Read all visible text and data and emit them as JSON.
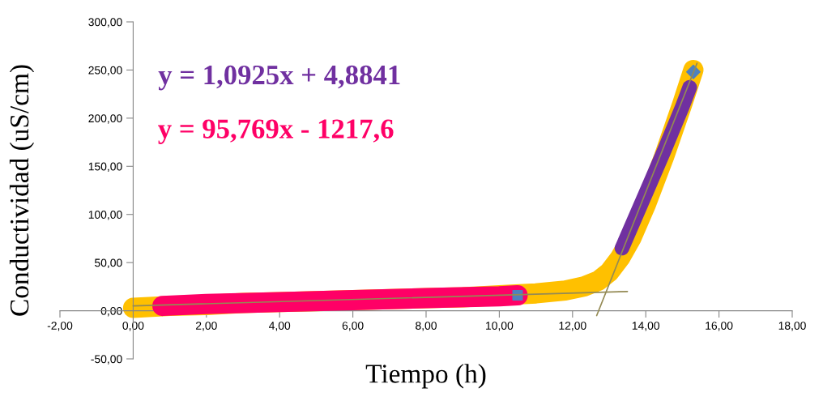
{
  "chart_data": {
    "type": "line",
    "xlabel": "Tiempo (h)",
    "ylabel": "Conductividad (uS/cm)",
    "annotations": [
      "y = 1,0925x + 4,8841",
      "y = 95,769x - 1217,6"
    ],
    "series": [
      {
        "color": "#ffc000",
        "x": [
          0,
          1,
          2,
          3,
          4,
          5,
          6,
          7,
          8,
          9,
          10,
          11,
          11.8,
          12.3,
          12.7,
          13.0,
          13.3,
          13.6,
          14.0,
          14.5,
          15.0,
          15.3
        ],
        "values": [
          3,
          5,
          6,
          8,
          9,
          10,
          11,
          12,
          13,
          14,
          16,
          18,
          21,
          25,
          31,
          40,
          55,
          75,
          110,
          160,
          215,
          250
        ]
      },
      {
        "color": "#ff0066",
        "x": [
          0.8,
          2,
          4,
          6,
          8,
          10,
          10.5
        ],
        "values": [
          5,
          7,
          9,
          11,
          13,
          15,
          16
        ]
      },
      {
        "color": "#7030a0",
        "x": [
          13.35,
          14,
          14.5,
          15,
          15.2
        ],
        "values": [
          65,
          122,
          166,
          212,
          232
        ]
      },
      {
        "color": "#948a54",
        "x": [
          0,
          13.5
        ],
        "values": [
          5,
          20
        ]
      },
      {
        "color": "#948a54",
        "x": [
          12.66,
          15.4
        ],
        "values": [
          -5,
          257
        ]
      },
      {
        "type": "scatter",
        "color": "#4f81bd",
        "marker": "square",
        "x": [
          10.5
        ],
        "values": [
          16
        ]
      },
      {
        "type": "scatter",
        "color": "#4f81bd",
        "marker": "diamond",
        "x": [
          15.3
        ],
        "values": [
          248
        ]
      }
    ],
    "marker": "none",
    "grid": false,
    "legend": false,
    "xlim": [
      -2,
      18
    ],
    "xticks": [
      {
        "value": -2,
        "label": "-2,00"
      },
      {
        "value": 0,
        "label": "0,00"
      },
      {
        "value": 2,
        "label": "2,00"
      },
      {
        "value": 4,
        "label": "4,00"
      },
      {
        "value": 6,
        "label": "6,00"
      },
      {
        "value": 8,
        "label": "8,00"
      },
      {
        "value": 10,
        "label": "10,00"
      },
      {
        "value": 12,
        "label": "12,00"
      },
      {
        "value": 14,
        "label": "14,00"
      },
      {
        "value": 16,
        "label": "16,00"
      },
      {
        "value": 18,
        "label": "18,00"
      }
    ],
    "ylim": [
      -50,
      300
    ],
    "yticks": [
      {
        "value": -50,
        "label": "-50,00"
      },
      {
        "value": 0,
        "label": "0,00"
      },
      {
        "value": 50,
        "label": "50,00"
      },
      {
        "value": 100,
        "label": "100,00"
      },
      {
        "value": 150,
        "label": "150,00"
      },
      {
        "value": 200,
        "label": "200,00"
      },
      {
        "value": 250,
        "label": "250,00"
      },
      {
        "value": 300,
        "label": "300,00"
      }
    ]
  }
}
